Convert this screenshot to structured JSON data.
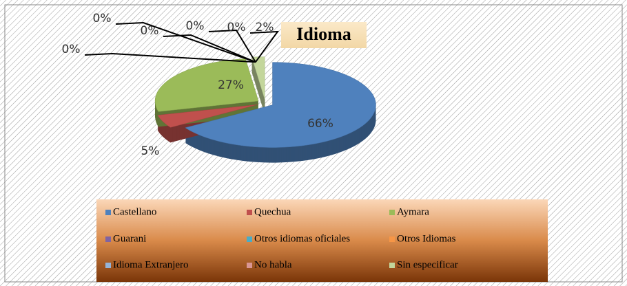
{
  "chart_data": {
    "type": "pie",
    "title": "Idioma",
    "categories": [
      "Castellano",
      "Quechua",
      "Aymara",
      "Guarani",
      "Otros idiomas oficiales",
      "Otros Idiomas",
      "Idioma Extranjero",
      "No habla",
      "Sin especificar"
    ],
    "values": [
      66,
      5,
      27,
      0,
      0,
      0,
      0,
      0,
      2
    ],
    "value_labels": [
      "66%",
      "5%",
      "27%",
      "0%",
      "0%",
      "0%",
      "0%",
      "0%",
      "2%"
    ],
    "colors": [
      "#4f81bd",
      "#c0504d",
      "#9bbb59",
      "#8064a2",
      "#4bacc6",
      "#f79646",
      "#95b3d7",
      "#d99694",
      "#c3d69b"
    ],
    "legend": "bottom"
  }
}
